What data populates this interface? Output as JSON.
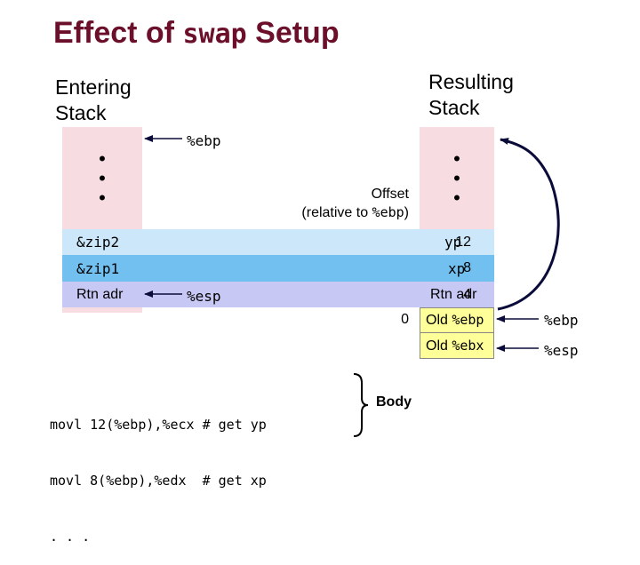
{
  "title": {
    "prefix": "Effect of ",
    "code": "swap",
    "suffix": " Setup"
  },
  "entering_stack": {
    "label_line1": "Entering",
    "label_line2": "Stack"
  },
  "resulting_stack": {
    "label_line1": "Resulting",
    "label_line2": "Stack"
  },
  "pointers": {
    "ebp_left": "%ebp",
    "esp_left": "%esp",
    "ebp_right": "%ebp",
    "esp_right": "%esp"
  },
  "offset_note": {
    "line1": "Offset",
    "line2_prefix": "(relative to ",
    "line2_code": "%ebp",
    "line2_suffix": ")"
  },
  "rows": [
    {
      "left": "&zip2",
      "offset": "12",
      "right": "yp",
      "color": "#cce6fa"
    },
    {
      "left": "&zip1",
      "offset": "8",
      "right": "xp",
      "color": "#72c0f0"
    },
    {
      "left": "Rtn adr",
      "offset": "4",
      "right": "Rtn adr",
      "color": "#c8c8f5"
    }
  ],
  "new_rows": [
    {
      "offset": "0",
      "text": "Old ",
      "code": "%ebp"
    },
    {
      "offset": "",
      "text": "Old ",
      "code": "%ebx"
    }
  ],
  "code": {
    "line1": "movl 12(%ebp),%ecx # get yp",
    "line2": "movl 8(%ebp),%edx  # get xp",
    "line3": ". . ."
  },
  "body_label": "Body",
  "colors": {
    "title": "#6b0f2a",
    "stack_pink": "#f7dde2",
    "new_frame_yellow": "#ffff99",
    "arrow": "#0b0b3a"
  }
}
